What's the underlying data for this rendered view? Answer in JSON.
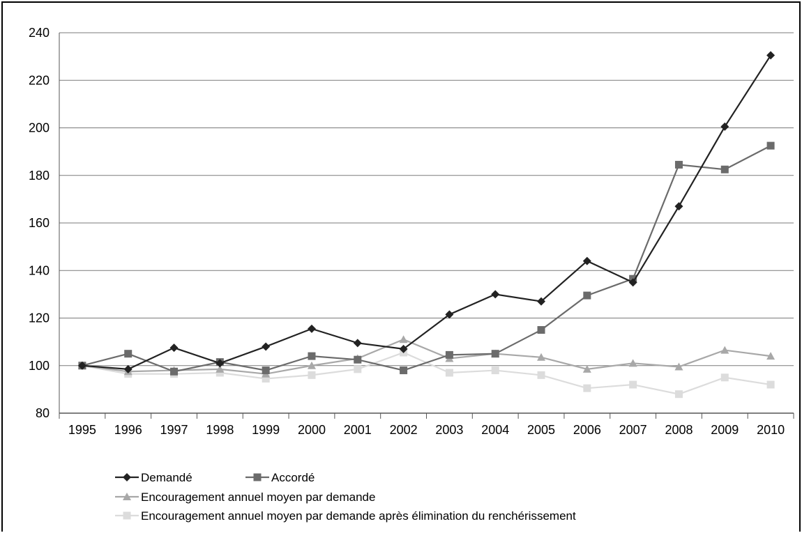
{
  "chart_data": {
    "type": "line",
    "categories": [
      "1995",
      "1996",
      "1997",
      "1998",
      "1999",
      "2000",
      "2001",
      "2002",
      "2003",
      "2004",
      "2005",
      "2006",
      "2007",
      "2008",
      "2009",
      "2010"
    ],
    "ylim": [
      80,
      240
    ],
    "yticks": [
      80,
      100,
      120,
      140,
      160,
      180,
      200,
      220,
      240
    ],
    "grid": true,
    "legend_position": "bottom",
    "series": [
      {
        "name": "Demandé",
        "marker": "diamond",
        "color": "#222222",
        "values": [
          100,
          98.5,
          107.5,
          101,
          108,
          115.5,
          109.5,
          107,
          121.5,
          130,
          127,
          144,
          135,
          167,
          200.5,
          230.5
        ]
      },
      {
        "name": "Accordé",
        "marker": "square",
        "color": "#6b6b6b",
        "values": [
          100,
          105,
          97.5,
          101.5,
          98,
          104,
          102.5,
          98,
          104.5,
          105,
          115,
          129.5,
          136.5,
          184.5,
          182.5,
          192.5
        ]
      },
      {
        "name": "Encouragement annuel moyen par demande",
        "marker": "triangle",
        "color": "#a8a8a8",
        "values": [
          100,
          97.5,
          98,
          98.5,
          96.5,
          100,
          103,
          111,
          103,
          105,
          103.5,
          98.5,
          101,
          99.5,
          106.5,
          104
        ]
      },
      {
        "name": "Encouragement annuel moyen par demande après élimination du renchérissement",
        "marker": "square",
        "color": "#dcdcdc",
        "values": [
          100,
          96.5,
          96.5,
          97,
          94.5,
          96,
          98.5,
          105.5,
          97,
          98,
          96,
          90.5,
          92,
          88,
          95,
          92
        ]
      }
    ]
  }
}
